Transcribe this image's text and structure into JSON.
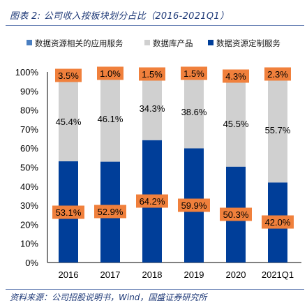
{
  "title": "图表 2: 公司收入按板块划分占比（2016-2021Q1）",
  "source": "资料来源：公司招股说明书，Wind，国盛证券研究所",
  "colors": {
    "app_services": "#4a7fc1",
    "database_products": "#d0d0d0",
    "custom_services": "#003e99",
    "label_box": "#f0803c",
    "axis": "#000000"
  },
  "chart_data": {
    "type": "bar",
    "stacked": true,
    "categories": [
      "2016",
      "2017",
      "2018",
      "2019",
      "2020",
      "2021Q1"
    ],
    "ylim": [
      0,
      100
    ],
    "yticks": [
      "0%",
      "10%",
      "20%",
      "30%",
      "40%",
      "50%",
      "60%",
      "70%",
      "80%",
      "90%",
      "100%"
    ],
    "legend_position": "top",
    "grid": false,
    "series": [
      {
        "name": "数据资源定制服务",
        "values": [
          53.1,
          52.9,
          64.2,
          59.9,
          50.3,
          42.0
        ],
        "labels": [
          "53.1%",
          "52.9%",
          "64.2%",
          "59.9%",
          "50.3%",
          "42.0%"
        ],
        "label_style": "boxed"
      },
      {
        "name": "数据库产品",
        "values": [
          45.4,
          46.1,
          34.3,
          38.6,
          45.5,
          55.7
        ],
        "labels": [
          "45.4%",
          "46.1%",
          "34.3%",
          "38.6%",
          "45.5%",
          "55.7%"
        ],
        "label_style": "plain"
      },
      {
        "name": "数据资源相关的应用服务",
        "values": [
          3.5,
          1.0,
          1.5,
          1.5,
          4.3,
          2.3
        ],
        "labels": [
          "3.5%",
          "1.0%",
          "1.5%",
          "1.5%",
          "4.3%",
          "2.3%"
        ],
        "label_style": "boxed"
      }
    ],
    "legend_order": [
      "数据资源相关的应用服务",
      "数据库产品",
      "数据资源定制服务"
    ]
  }
}
